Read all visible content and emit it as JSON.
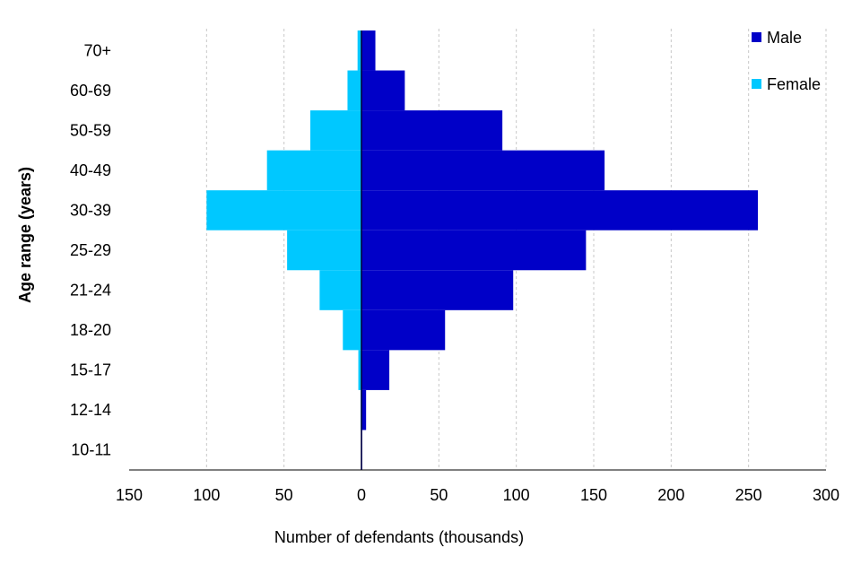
{
  "chart_data": {
    "type": "bar",
    "orientation": "horizontal-population-pyramid",
    "title": "",
    "xlabel": "Number  of defendants (thousands)",
    "ylabel": "Age range (years)",
    "xlim": [
      -150,
      300
    ],
    "x_ticks": [
      -150,
      -100,
      -50,
      0,
      50,
      100,
      150,
      200,
      250,
      300
    ],
    "x_tick_labels": [
      "150",
      "100",
      "50",
      "0",
      "50",
      "100",
      "150",
      "200",
      "250",
      "300"
    ],
    "categories": [
      "10-11",
      "12-14",
      "15-17",
      "18-20",
      "21-24",
      "25-29",
      "30-39",
      "40-49",
      "50-59",
      "60-69",
      "70+"
    ],
    "series": [
      {
        "name": "Male",
        "color": "#0000C8",
        "values": [
          0.5,
          3,
          18,
          54,
          98,
          145,
          256,
          157,
          91,
          28,
          9
        ]
      },
      {
        "name": "Female",
        "color": "#00C8FF",
        "values": [
          0.2,
          0.5,
          2,
          12,
          27,
          48,
          100,
          61,
          33,
          9,
          2.5
        ]
      }
    ],
    "grid": {
      "vertical": true,
      "style": "dashed",
      "color": "#c8c8c8"
    },
    "legend": {
      "position": "top-right",
      "entries": [
        "Male",
        "Female"
      ]
    },
    "zero_line_color": "#000033"
  }
}
